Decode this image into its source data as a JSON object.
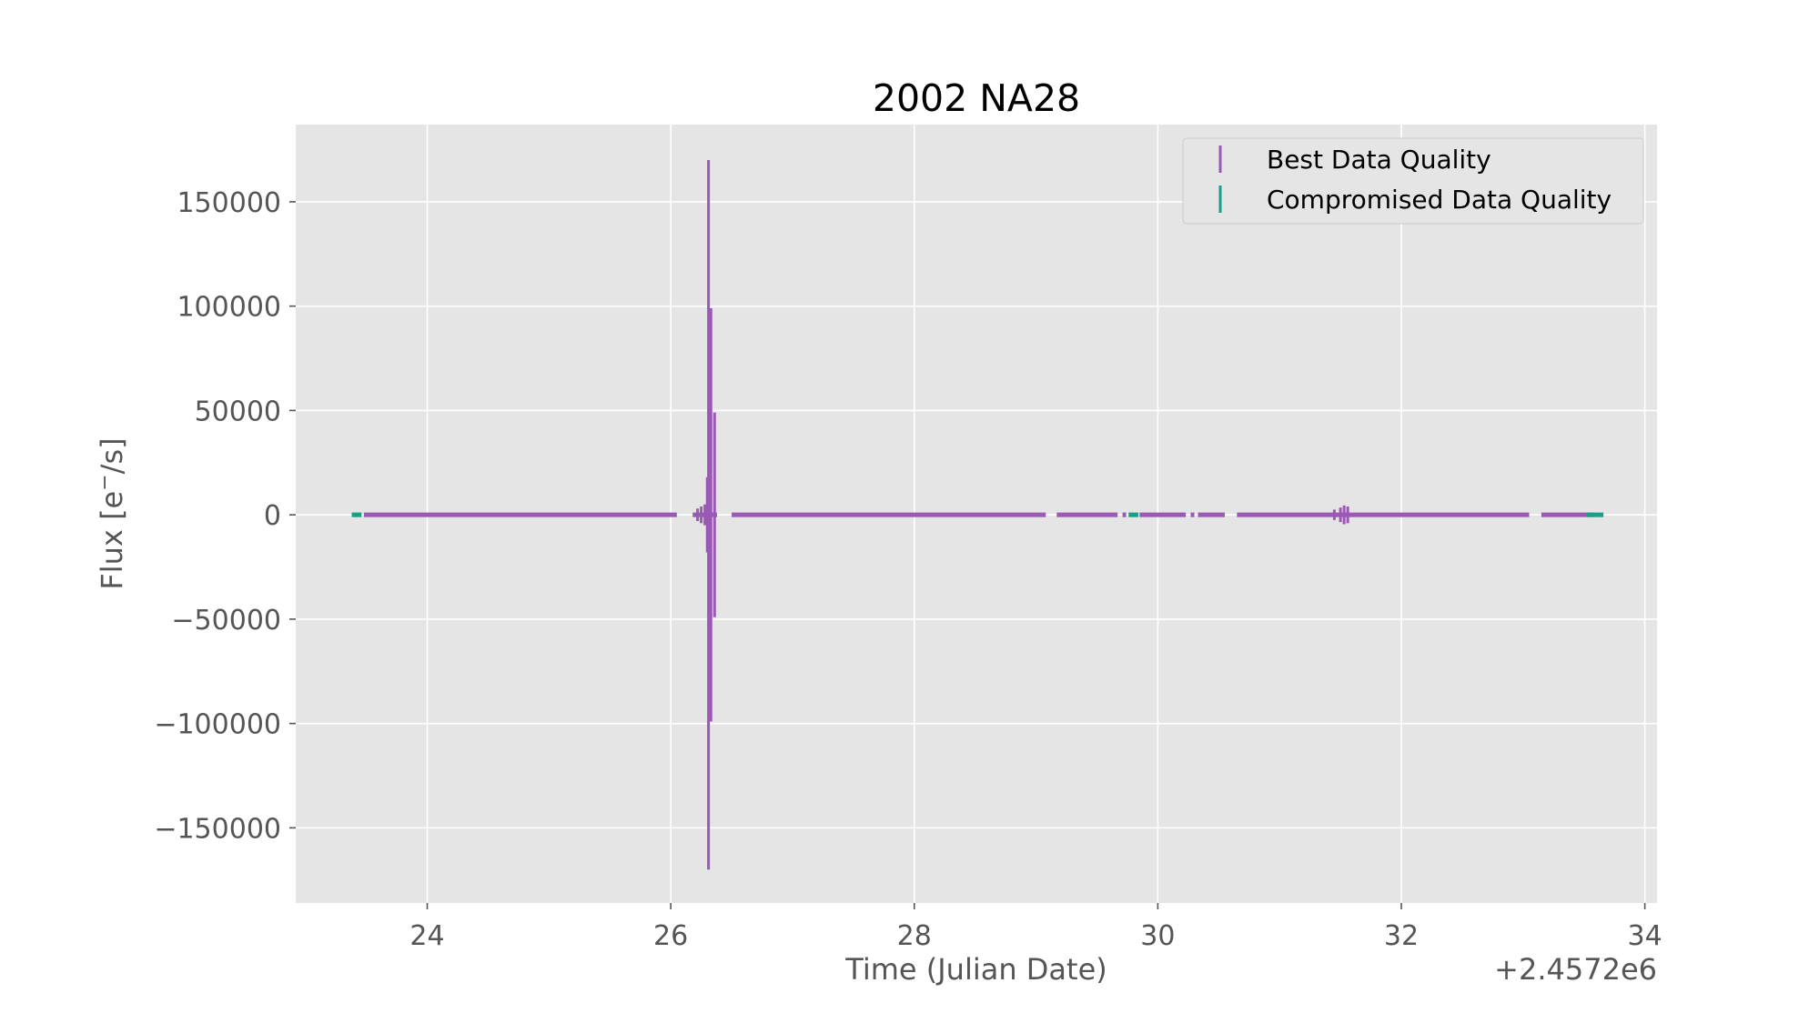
{
  "chart_data": {
    "type": "scatter",
    "title": "2002 NA28",
    "xlabel": "Time (Julian Date)",
    "ylabel": "Flux [e$^-$/s]",
    "x_offset_label": "+2.4572e6",
    "xlim": [
      2457222.92,
      2457234.1
    ],
    "ylim": [
      -186000,
      187000
    ],
    "x_ticks": [
      2457224,
      2457226,
      2457228,
      2457230,
      2457232,
      2457234
    ],
    "x_tick_labels": [
      "24",
      "26",
      "28",
      "30",
      "32",
      "34"
    ],
    "y_ticks": [
      150000,
      100000,
      50000,
      0,
      -50000,
      -100000,
      -150000
    ],
    "y_tick_labels": [
      "150000",
      "100000",
      "50000",
      "0",
      "−50000",
      "−100000",
      "−150000"
    ],
    "grid": true,
    "style": "ggplot",
    "legend_position": "top-right",
    "series": [
      {
        "name": "Best Data Quality",
        "color": "#9b59b6",
        "marker": "vertical-line",
        "segments": [
          [
            2457223.48,
            2457226.05
          ],
          [
            2457226.18,
            2457226.38
          ],
          [
            2457226.5,
            2457229.08
          ],
          [
            2457229.17,
            2457229.67
          ],
          [
            2457229.71,
            2457229.74
          ],
          [
            2457229.85,
            2457230.23
          ],
          [
            2457230.27,
            2457230.3
          ],
          [
            2457230.33,
            2457230.55
          ],
          [
            2457230.65,
            2457233.05
          ],
          [
            2457233.15,
            2457233.58
          ]
        ],
        "points": [
          {
            "x": 2457226.22,
            "y_low": -3000,
            "y_high": 3000
          },
          {
            "x": 2457226.25,
            "y_low": -4000,
            "y_high": 4000
          },
          {
            "x": 2457226.28,
            "y_low": -5000,
            "y_high": 5000
          },
          {
            "x": 2457226.3,
            "y_low": -18000,
            "y_high": 18000
          },
          {
            "x": 2457226.31,
            "y_low": -170000,
            "y_high": 170000
          },
          {
            "x": 2457226.33,
            "y_low": -99000,
            "y_high": 99000
          },
          {
            "x": 2457226.36,
            "y_low": -49000,
            "y_high": 49000
          },
          {
            "x": 2457231.45,
            "y_low": -2500,
            "y_high": 2500
          },
          {
            "x": 2457231.5,
            "y_low": -3500,
            "y_high": 3500
          },
          {
            "x": 2457231.53,
            "y_low": -4500,
            "y_high": 4500
          },
          {
            "x": 2457231.56,
            "y_low": -4000,
            "y_high": 4000
          }
        ]
      },
      {
        "name": "Compromised Data Quality",
        "color": "#16a085",
        "marker": "vertical-line",
        "segments": [
          [
            2457223.38,
            2457223.46
          ],
          [
            2457229.76,
            2457229.84
          ],
          [
            2457233.52,
            2457233.66
          ]
        ],
        "points": []
      }
    ]
  }
}
